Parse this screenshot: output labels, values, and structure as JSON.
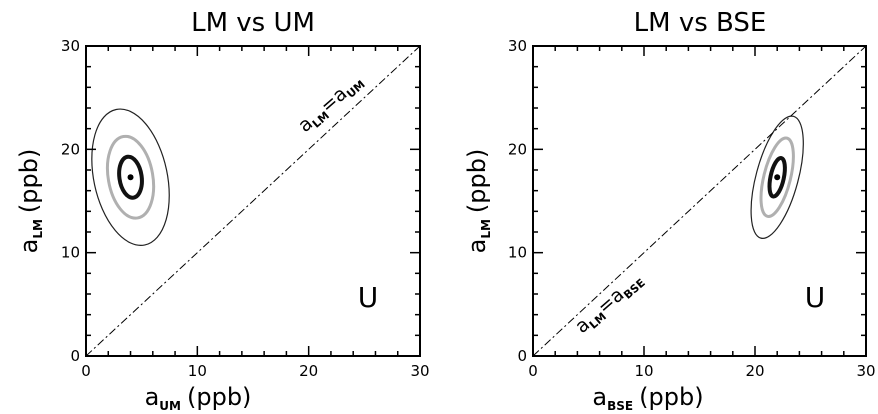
{
  "chart_data": [
    {
      "type": "contour",
      "title": "LM vs UM",
      "xlabel": {
        "base": "a",
        "sub": "UM",
        "unit": "(ppb)"
      },
      "ylabel": {
        "base": "a",
        "sub": "LM",
        "unit": "(ppb)"
      },
      "xlim": [
        0,
        30
      ],
      "ylim": [
        0,
        30
      ],
      "xticks": [
        "0",
        "10",
        "20",
        "30"
      ],
      "yticks": [
        "0",
        "10",
        "20",
        "30"
      ],
      "best_fit": {
        "x": 4,
        "y": 17.3
      },
      "contours": [
        {
          "level": "inner",
          "color": "#111111",
          "cx": 4,
          "cy": 17.3,
          "rx": 1.0,
          "ry": 2.0,
          "angle_deg": -8
        },
        {
          "level": "middle",
          "color": "#b0b0b0",
          "cx": 4,
          "cy": 17.3,
          "rx": 2.0,
          "ry": 4.0,
          "angle_deg": -10
        },
        {
          "level": "outer",
          "color": "#222222",
          "cx": 4,
          "cy": 17.3,
          "rx": 3.3,
          "ry": 6.7,
          "angle_deg": -12
        }
      ],
      "reference_line": {
        "style": "dash-dot",
        "from": [
          0,
          0
        ],
        "to": [
          30,
          30
        ],
        "label": {
          "base": "a",
          "sub1": "LM",
          "eq": "=",
          "base2": "a",
          "sub2": "UM"
        }
      },
      "marker_text": "U"
    },
    {
      "type": "contour",
      "title": "LM vs BSE",
      "xlabel": {
        "base": "a",
        "sub": "BSE",
        "unit": "(ppb)"
      },
      "ylabel": {
        "base": "a",
        "sub": "LM",
        "unit": "(ppb)"
      },
      "xlim": [
        0,
        30
      ],
      "ylim": [
        0,
        30
      ],
      "xticks": [
        "0",
        "10",
        "20",
        "30"
      ],
      "yticks": [
        "0",
        "10",
        "20",
        "30"
      ],
      "best_fit": {
        "x": 22,
        "y": 17.3
      },
      "contours": [
        {
          "level": "inner",
          "color": "#111111",
          "cx": 22,
          "cy": 17.3,
          "rx": 0.6,
          "ry": 1.9,
          "angle_deg": 12
        },
        {
          "level": "middle",
          "color": "#b0b0b0",
          "cx": 22,
          "cy": 17.3,
          "rx": 1.2,
          "ry": 3.9,
          "angle_deg": 14
        },
        {
          "level": "outer",
          "color": "#222222",
          "cx": 22,
          "cy": 17.3,
          "rx": 1.9,
          "ry": 6.1,
          "angle_deg": 15
        }
      ],
      "reference_line": {
        "style": "dash-dot",
        "from": [
          0,
          0
        ],
        "to": [
          30,
          30
        ],
        "label": {
          "base": "a",
          "sub1": "LM",
          "eq": "=",
          "base2": "a",
          "sub2": "BSE"
        }
      },
      "marker_text": "U"
    }
  ]
}
